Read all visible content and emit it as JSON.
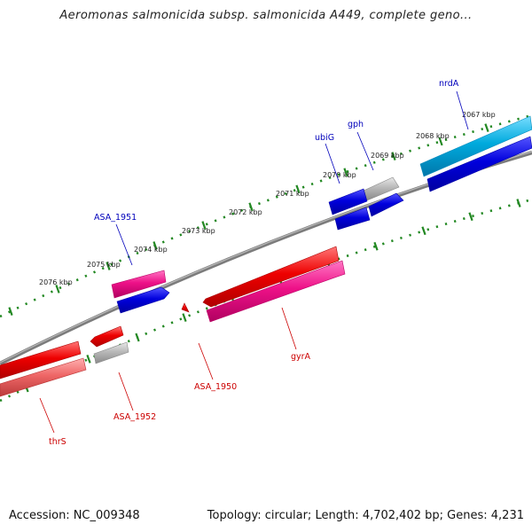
{
  "title": "Aeromonas salmonicida subsp. salmonicida A449, complete geno...",
  "footer": {
    "accession_label": "Accession:",
    "accession": "NC_009348",
    "topology_label": "Topology:",
    "topology": "circular",
    "length_label": "Length:",
    "length": "4,702,402 bp",
    "genes_label": "Genes:",
    "genes": "4,231"
  },
  "ruler": {
    "labels": [
      "2067 kbp",
      "2068 kbp",
      "2069 kbp",
      "2070 kbp",
      "2071 kbp",
      "2072 kbp",
      "2073 kbp",
      "2074 kbp",
      "2075 kbp",
      "2076 kbp"
    ]
  },
  "genes": [
    {
      "name": "nrdA",
      "strand": "forward",
      "color": "#00aadd"
    },
    {
      "name": "gph",
      "strand": "forward",
      "color": "#aaaaaa"
    },
    {
      "name": "ubiG",
      "strand": "forward",
      "color": "#0000dd"
    },
    {
      "name": "ASA_1951",
      "strand": "forward",
      "color": "#ee1188"
    },
    {
      "name": "gyrA",
      "strand": "reverse",
      "color": "#ee1188"
    },
    {
      "name": "ASA_1950",
      "strand": "reverse",
      "color": "#ee0000"
    },
    {
      "name": "ASA_1952",
      "strand": "reverse",
      "color": "#aaaaaa"
    },
    {
      "name": "thrS",
      "strand": "reverse",
      "color": "#ee4444"
    }
  ],
  "colors": {
    "forward_label": "#0000bb",
    "reverse_label": "#cc0000",
    "ruler": "#228822",
    "backbone": "#888888",
    "cds_blue": "#0000dd",
    "cds_red": "#ee0000",
    "cds_pink": "#ee1188",
    "cds_gray": "#aaaaaa",
    "cds_cyan": "#00aadd"
  }
}
